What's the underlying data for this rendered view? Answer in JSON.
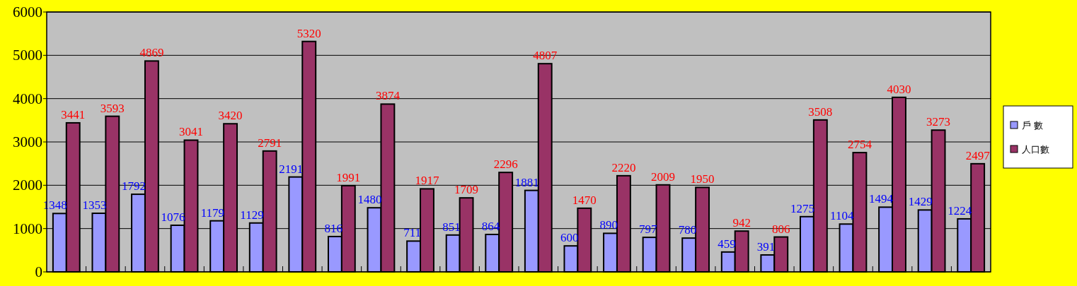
{
  "chart_data": {
    "type": "bar",
    "categories": [
      null,
      null,
      null,
      null,
      null,
      null,
      null,
      null,
      null,
      null,
      null,
      null,
      null,
      null,
      null,
      null,
      null,
      null,
      null,
      null,
      null,
      null,
      null,
      null
    ],
    "series": [
      {
        "name": "戶 數",
        "color": "#9999ff",
        "values": [
          1348,
          1353,
          1792,
          1076,
          1179,
          1129,
          2191,
          816,
          1480,
          711,
          851,
          864,
          1881,
          600,
          890,
          797,
          780,
          459,
          391,
          1275,
          1104,
          1494,
          1429,
          1224
        ]
      },
      {
        "name": "人口數",
        "color": "#993366",
        "values": [
          3441,
          3593,
          4869,
          3041,
          3420,
          2791,
          5320,
          1991,
          3874,
          1917,
          1709,
          2296,
          4807,
          1470,
          2220,
          2009,
          1950,
          942,
          806,
          3508,
          2754,
          4030,
          3273,
          2497
        ]
      }
    ],
    "ylim": [
      0,
      6000
    ],
    "yticks": [
      0,
      1000,
      2000,
      3000,
      4000,
      5000,
      6000
    ],
    "grid": "y",
    "legend": "right",
    "data_labels": true
  }
}
